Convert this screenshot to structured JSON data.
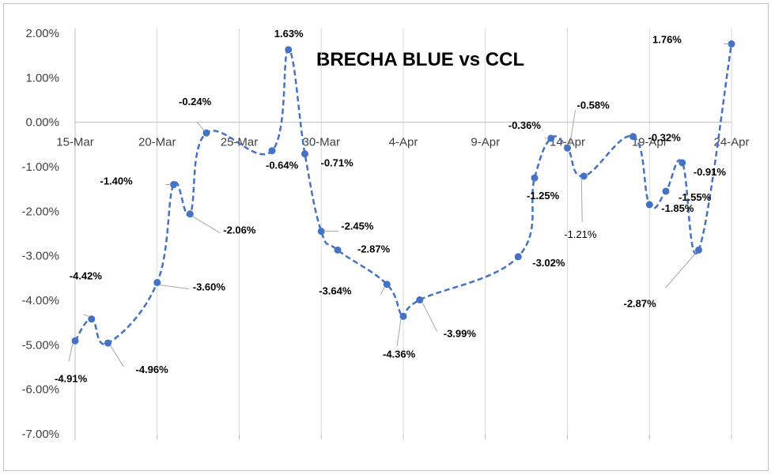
{
  "chart_data": {
    "type": "line",
    "title": "BRECHA BLUE vs CCL",
    "xlabel": "",
    "ylabel": "",
    "x_tick_labels": [
      "15-Mar",
      "20-Mar",
      "25-Mar",
      "30-Mar",
      "4-Apr",
      "9-Apr",
      "14-Apr",
      "19-Apr",
      "24-Apr"
    ],
    "y_tick_labels": [
      "2.00%",
      "1.00%",
      "0.00%",
      "-1.00%",
      "-2.00%",
      "-3.00%",
      "-4.00%",
      "-5.00%",
      "-6.00%",
      "-7.00%"
    ],
    "ylim": [
      -7,
      2
    ],
    "xlim": [
      "2023-03-15",
      "2023-04-24"
    ],
    "grid": "vertical",
    "line_color": "#4472C4",
    "line_style": "dashed-smooth",
    "series": [
      {
        "values": [
          {
            "x": "2023-03-15",
            "y": -4.91,
            "label": "-4.91%"
          },
          {
            "x": "2023-03-16",
            "y": -4.42,
            "label": "-4.42%"
          },
          {
            "x": "2023-03-17",
            "y": -4.96,
            "label": "-4.96%"
          },
          {
            "x": "2023-03-20",
            "y": -3.6,
            "label": "-3.60%"
          },
          {
            "x": "2023-03-21",
            "y": -1.4,
            "label": "-1.40%"
          },
          {
            "x": "2023-03-22",
            "y": -2.06,
            "label": "-2.06%"
          },
          {
            "x": "2023-03-23",
            "y": -0.24,
            "label": "-0.24%"
          },
          {
            "x": "2023-03-27",
            "y": -0.64,
            "label": "-0.64%"
          },
          {
            "x": "2023-03-28",
            "y": 1.63,
            "label": "1.63%"
          },
          {
            "x": "2023-03-29",
            "y": -0.71,
            "label": "-0.71%"
          },
          {
            "x": "2023-03-30",
            "y": -2.45,
            "label": "-2.45%"
          },
          {
            "x": "2023-03-31",
            "y": -2.87,
            "label": "-2.87%"
          },
          {
            "x": "2023-04-03",
            "y": -3.64,
            "label": "-3.64%"
          },
          {
            "x": "2023-04-04",
            "y": -4.36,
            "label": "-4.36%"
          },
          {
            "x": "2023-04-05",
            "y": -3.99,
            "label": "-3.99%"
          },
          {
            "x": "2023-04-11",
            "y": -3.02,
            "label": "-3.02%"
          },
          {
            "x": "2023-04-12",
            "y": -1.25,
            "label": "-1.25%"
          },
          {
            "x": "2023-04-13",
            "y": -0.36,
            "label": "-0.36%"
          },
          {
            "x": "2023-04-14",
            "y": -0.58,
            "label": "-0.58%"
          },
          {
            "x": "2023-04-15",
            "y": -1.21,
            "label": "-1.21%"
          },
          {
            "x": "2023-04-18",
            "y": -0.32,
            "label": "-0.32%"
          },
          {
            "x": "2023-04-19",
            "y": -1.85,
            "label": "-1.85%"
          },
          {
            "x": "2023-04-20",
            "y": -1.55,
            "label": "-1.55%"
          },
          {
            "x": "2023-04-21",
            "y": -0.91,
            "label": "-0.91%"
          },
          {
            "x": "2023-04-22",
            "y": -2.87,
            "label": "-2.87%"
          },
          {
            "x": "2023-04-24",
            "y": 1.76,
            "label": "1.76%"
          }
        ]
      }
    ]
  }
}
